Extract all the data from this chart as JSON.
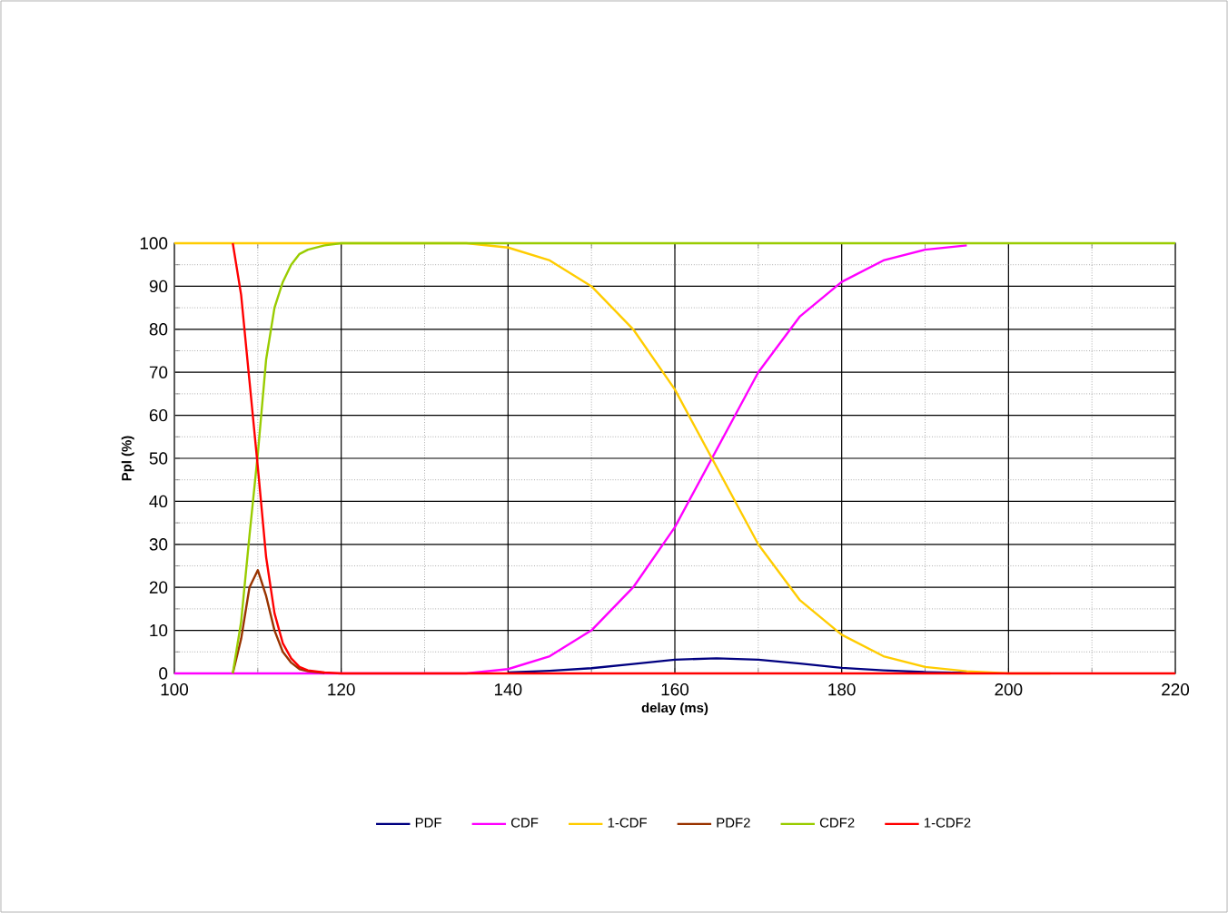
{
  "chart_data": {
    "type": "line",
    "xlabel": "delay (ms)",
    "ylabel": "Ppl (%)",
    "xlim": [
      100,
      220
    ],
    "xticks": [
      100,
      120,
      140,
      160,
      180,
      200,
      220
    ],
    "ylim": [
      0,
      100
    ],
    "yticks": [
      0,
      10,
      20,
      30,
      40,
      50,
      60,
      70,
      80,
      90,
      100
    ],
    "grid": true,
    "legend": "bottom",
    "series": [
      {
        "name": "PDF",
        "color": "#000080",
        "x": [
          140,
          145,
          150,
          155,
          160,
          165,
          170,
          175,
          180,
          185,
          190,
          195
        ],
        "values": [
          0.2,
          0.6,
          1.2,
          2.2,
          3.2,
          3.5,
          3.2,
          2.3,
          1.3,
          0.7,
          0.3,
          0.1
        ]
      },
      {
        "name": "CDF",
        "color": "#ff00ff",
        "x": [
          100,
          105,
          110,
          115,
          120,
          125,
          130,
          135,
          140,
          145,
          150,
          155,
          160,
          165,
          170,
          175,
          180,
          185,
          190,
          195
        ],
        "values": [
          0,
          0,
          0,
          0,
          0,
          0,
          0,
          0,
          1,
          4,
          10,
          20,
          34,
          52,
          70,
          83,
          91,
          96,
          98.5,
          99.5
        ]
      },
      {
        "name": "1-CDF",
        "color": "#ffcc00",
        "x": [
          100,
          105,
          110,
          115,
          120,
          125,
          130,
          135,
          140,
          145,
          150,
          155,
          160,
          165,
          170,
          175,
          180,
          185,
          190,
          195,
          200,
          205
        ],
        "values": [
          100,
          100,
          100,
          100,
          100,
          100,
          100,
          100,
          99,
          96,
          90,
          80,
          66,
          48,
          30,
          17,
          9,
          4,
          1.5,
          0.5,
          0,
          0
        ]
      },
      {
        "name": "PDF2",
        "color": "#993300",
        "x": [
          107,
          108,
          109,
          110,
          111,
          112,
          113,
          114,
          115,
          116,
          118
        ],
        "values": [
          0,
          8,
          20,
          24,
          18,
          10,
          5,
          2.5,
          1,
          0.5,
          0.1
        ]
      },
      {
        "name": "CDF2",
        "color": "#99cc00",
        "x": [
          107,
          108,
          109,
          110,
          111,
          112,
          113,
          114,
          115,
          116,
          118,
          120,
          140,
          160,
          180,
          200,
          220
        ],
        "values": [
          0,
          12,
          32,
          51,
          73,
          85,
          91,
          95,
          97.5,
          98.5,
          99.5,
          100,
          100,
          100,
          100,
          100,
          100
        ]
      },
      {
        "name": "1-CDF2",
        "color": "#ff0000",
        "x": [
          107,
          108,
          109,
          110,
          111,
          112,
          113,
          114,
          115,
          116,
          118,
          120,
          140,
          160,
          180,
          200,
          220
        ],
        "values": [
          100,
          88,
          68,
          48,
          27,
          14,
          7,
          3.5,
          1.5,
          0.7,
          0.2,
          0,
          0,
          0,
          0,
          0,
          0
        ]
      }
    ]
  }
}
